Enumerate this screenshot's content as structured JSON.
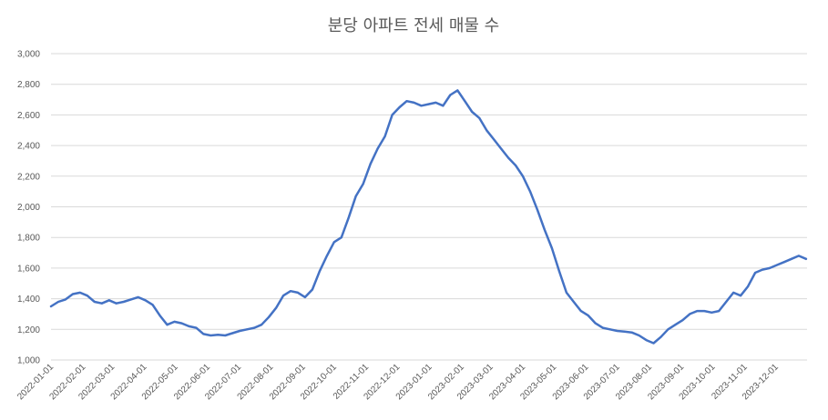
{
  "chart_data": {
    "type": "line",
    "title": "분당 아파트 전세 매물 수",
    "xlabel": "",
    "ylabel": "",
    "ylim": [
      1000,
      3000
    ],
    "y_ticks": [
      "1,000",
      "1,200",
      "1,400",
      "1,600",
      "1,800",
      "2,000",
      "2,200",
      "2,400",
      "2,600",
      "2,800",
      "3,000"
    ],
    "x_ticks": [
      "2022-01-01",
      "2022-02-01",
      "2022-03-01",
      "2022-04-01",
      "2022-05-01",
      "2022-06-01",
      "2022-07-01",
      "2022-08-01",
      "2022-09-01",
      "2022-10-01",
      "2022-11-01",
      "2022-12-01",
      "2023-01-01",
      "2023-02-01",
      "2023-03-01",
      "2023-04-01",
      "2023-05-01",
      "2023-06-01",
      "2023-07-01",
      "2023-08-01",
      "2023-09-01",
      "2023-10-01",
      "2023-11-01",
      "2023-12-01"
    ],
    "grid": true,
    "legend": "none",
    "color": "#4472c4",
    "series": [
      {
        "x": [
          "2022-01-01",
          "2022-01-08",
          "2022-01-15",
          "2022-01-22",
          "2022-01-29",
          "2022-02-05",
          "2022-02-12",
          "2022-02-19",
          "2022-02-26",
          "2022-03-05",
          "2022-03-12",
          "2022-03-19",
          "2022-03-26",
          "2022-04-02",
          "2022-04-09",
          "2022-04-16",
          "2022-04-23",
          "2022-04-30",
          "2022-05-07",
          "2022-05-14",
          "2022-05-21",
          "2022-05-28",
          "2022-06-04",
          "2022-06-11",
          "2022-06-18",
          "2022-06-25",
          "2022-07-02",
          "2022-07-09",
          "2022-07-16",
          "2022-07-23",
          "2022-07-30",
          "2022-08-06",
          "2022-08-13",
          "2022-08-20",
          "2022-08-27",
          "2022-09-03",
          "2022-09-10",
          "2022-09-17",
          "2022-09-24",
          "2022-10-01",
          "2022-10-08",
          "2022-10-15",
          "2022-10-22",
          "2022-10-29",
          "2022-11-05",
          "2022-11-12",
          "2022-11-19",
          "2022-11-26",
          "2022-12-03",
          "2022-12-10",
          "2022-12-17",
          "2022-12-24",
          "2022-12-31",
          "2023-01-07",
          "2023-01-14",
          "2023-01-21",
          "2023-01-28",
          "2023-02-04",
          "2023-02-11",
          "2023-02-18",
          "2023-02-25",
          "2023-03-04",
          "2023-03-11",
          "2023-03-18",
          "2023-03-25",
          "2023-04-01",
          "2023-04-08",
          "2023-04-15",
          "2023-04-22",
          "2023-04-29",
          "2023-05-06",
          "2023-05-13",
          "2023-05-20",
          "2023-05-27",
          "2023-06-03",
          "2023-06-10",
          "2023-06-17",
          "2023-06-24",
          "2023-07-01",
          "2023-07-08",
          "2023-07-15",
          "2023-07-22",
          "2023-07-29",
          "2023-08-05",
          "2023-08-12",
          "2023-08-19",
          "2023-08-26",
          "2023-09-02",
          "2023-09-09",
          "2023-09-16",
          "2023-09-23",
          "2023-09-30",
          "2023-10-07",
          "2023-10-14",
          "2023-10-21",
          "2023-10-28",
          "2023-11-04",
          "2023-11-11",
          "2023-11-18",
          "2023-11-25",
          "2023-12-02",
          "2023-12-09",
          "2023-12-16",
          "2023-12-23",
          "2023-12-30"
        ],
        "values": [
          1350,
          1380,
          1395,
          1430,
          1440,
          1420,
          1380,
          1370,
          1390,
          1370,
          1380,
          1395,
          1410,
          1390,
          1360,
          1290,
          1230,
          1250,
          1240,
          1220,
          1210,
          1170,
          1160,
          1165,
          1160,
          1175,
          1190,
          1200,
          1210,
          1230,
          1280,
          1340,
          1420,
          1450,
          1440,
          1410,
          1460,
          1580,
          1680,
          1770,
          1800,
          1930,
          2070,
          2150,
          2280,
          2380,
          2460,
          2600,
          2650,
          2690,
          2680,
          2660,
          2670,
          2680,
          2660,
          2730,
          2760,
          2690,
          2620,
          2580,
          2500,
          2440,
          2380,
          2320,
          2270,
          2200,
          2100,
          1980,
          1850,
          1730,
          1580,
          1440,
          1380,
          1320,
          1290,
          1240,
          1210,
          1200,
          1190,
          1185,
          1180,
          1160,
          1130,
          1110,
          1150,
          1200,
          1230,
          1260,
          1300,
          1320,
          1320,
          1310,
          1320,
          1380,
          1440,
          1420,
          1480,
          1570,
          1590,
          1600,
          1620,
          1640,
          1660,
          1680,
          1660
        ]
      }
    ]
  }
}
